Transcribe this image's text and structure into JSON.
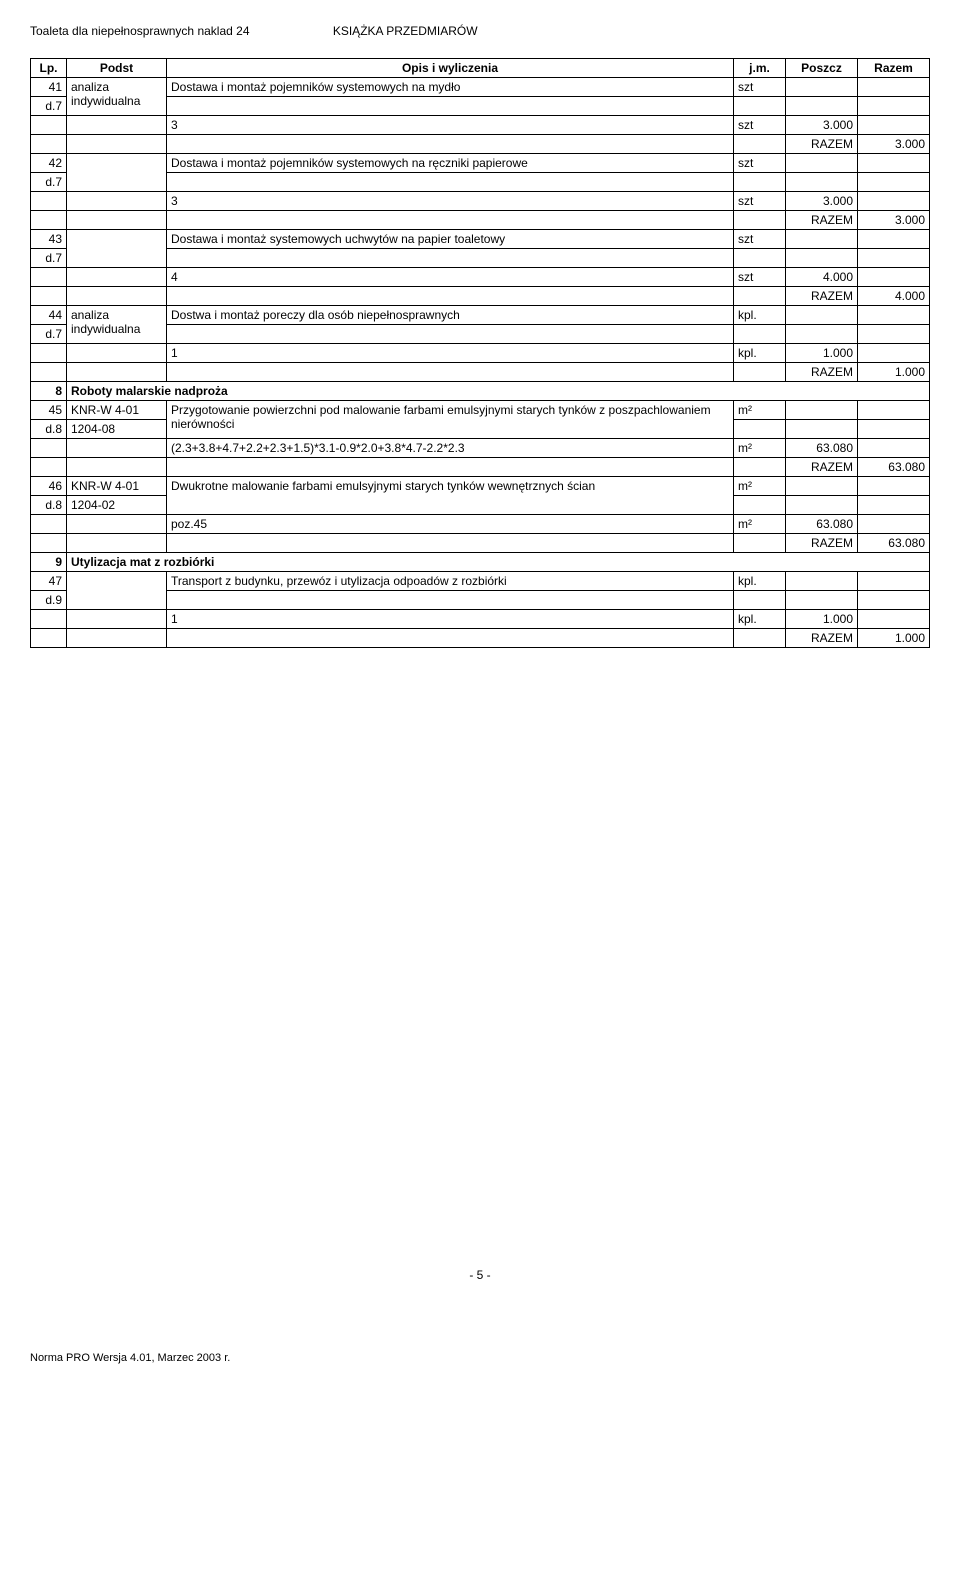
{
  "header": {
    "left": "Toaleta dla niepełnosprawnych naklad 24",
    "right": "KSIĄŻKA PRZEDMIARÓW"
  },
  "columns": {
    "lp": "Lp.",
    "podst": "Podst",
    "opis": "Opis i wyliczenia",
    "jm": "j.m.",
    "poszcz": "Poszcz",
    "razem": "Razem"
  },
  "r41": {
    "lp": "41",
    "sub": "d.7",
    "podst": "analiza indywidualna",
    "desc": "Dostawa i montaż pojemników systemowych na mydło",
    "unit": "szt",
    "calc": "3",
    "calc_unit": "szt",
    "calc_val": "3.000",
    "razem_label": "RAZEM",
    "razem_val": "3.000"
  },
  "r42": {
    "lp": "42",
    "sub": "d.7",
    "desc": "Dostawa i montaż pojemników systemowych na ręczniki papierowe",
    "unit": "szt",
    "calc": "3",
    "calc_unit": "szt",
    "calc_val": "3.000",
    "razem_label": "RAZEM",
    "razem_val": "3.000"
  },
  "r43": {
    "lp": "43",
    "sub": "d.7",
    "desc": "Dostawa i montaż systemowych uchwytów na papier toaletowy",
    "unit": "szt",
    "calc": "4",
    "calc_unit": "szt",
    "calc_val": "4.000",
    "razem_label": "RAZEM",
    "razem_val": "4.000"
  },
  "r44": {
    "lp": "44",
    "sub": "d.7",
    "podst": "analiza indywidualna",
    "desc": "Dostwa i montaż poreczy dla osób niepełnosprawnych",
    "unit": "kpl.",
    "calc": "1",
    "calc_unit": "kpl.",
    "calc_val": "1.000",
    "razem_label": "RAZEM",
    "razem_val": "1.000"
  },
  "sec8": {
    "lp": "8",
    "title": "Roboty malarskie nadproża"
  },
  "r45": {
    "lp": "45",
    "sub": "d.8",
    "podst_l1": "KNR-W 4-01",
    "podst_l2": "1204-08",
    "desc": "Przygotowanie powierzchni pod malowanie farbami emulsyjnymi starych tynków z poszpachlowaniem nierówności",
    "unit": "m²",
    "calc": "(2.3+3.8+4.7+2.2+2.3+1.5)*3.1-0.9*2.0+3.8*4.7-2.2*2.3",
    "calc_unit": "m²",
    "calc_val": "63.080",
    "razem_label": "RAZEM",
    "razem_val": "63.080"
  },
  "r46": {
    "lp": "46",
    "sub": "d.8",
    "podst_l1": "KNR-W 4-01",
    "podst_l2": "1204-02",
    "desc": "Dwukrotne malowanie farbami emulsyjnymi starych tynków wewnętrznych ścian",
    "unit": "m²",
    "calc": "poz.45",
    "calc_unit": "m²",
    "calc_val": "63.080",
    "razem_label": "RAZEM",
    "razem_val": "63.080"
  },
  "sec9": {
    "lp": "9",
    "title": "Utylizacja mat z rozbiórki"
  },
  "r47": {
    "lp": "47",
    "sub": "d.9",
    "desc": "Transport z budynku, przewóz i utylizacja odpoadów z rozbiórki",
    "unit": "kpl.",
    "calc": "1",
    "calc_unit": "kpl.",
    "calc_val": "1.000",
    "razem_label": "RAZEM",
    "razem_val": "1.000"
  },
  "footer": {
    "page": "- 5 -",
    "generator": "Norma PRO Wersja 4.01, Marzec 2003 r."
  }
}
